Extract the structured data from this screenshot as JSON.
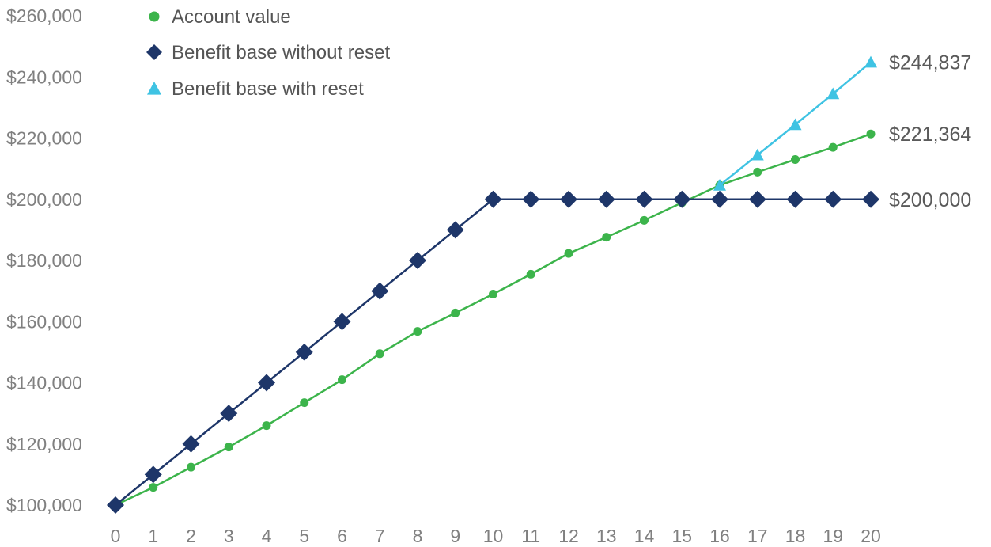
{
  "chart_data": {
    "type": "line",
    "title": "",
    "xlabel": "",
    "ylabel": "",
    "x": [
      0,
      1,
      2,
      3,
      4,
      5,
      6,
      7,
      8,
      9,
      10,
      11,
      12,
      13,
      14,
      15,
      16,
      17,
      18,
      19,
      20
    ],
    "ylim": [
      100000,
      260000
    ],
    "yticks": [
      100000,
      120000,
      140000,
      160000,
      180000,
      200000,
      220000,
      240000,
      260000
    ],
    "ytick_labels": [
      "$100,000",
      "$120,000",
      "$140,000",
      "$160,000",
      "$180,000",
      "$200,000",
      "$220,000",
      "$240,000",
      "$260,000"
    ],
    "xtick_labels": [
      "0",
      "1",
      "2",
      "3",
      "4",
      "5",
      "6",
      "7",
      "8",
      "9",
      "10",
      "11",
      "12",
      "13",
      "14",
      "15",
      "16",
      "17",
      "18",
      "19",
      "20"
    ],
    "grid": false,
    "legend_position": "top-left",
    "series": [
      {
        "name": "Account value",
        "marker": "circle",
        "color": "#3cb44b",
        "x": [
          0,
          1,
          2,
          3,
          4,
          5,
          6,
          7,
          8,
          9,
          10,
          11,
          12,
          13,
          14,
          15,
          16,
          17,
          18,
          19,
          20
        ],
        "values": [
          100000,
          105800,
          112400,
          119000,
          126000,
          133500,
          141000,
          149500,
          156800,
          162800,
          169000,
          175500,
          182300,
          187600,
          193100,
          198900,
          204600,
          208900,
          213000,
          217000,
          221364
        ]
      },
      {
        "name": "Benefit base without reset",
        "marker": "diamond",
        "color": "#1e3669",
        "x": [
          0,
          1,
          2,
          3,
          4,
          5,
          6,
          7,
          8,
          9,
          10,
          11,
          12,
          13,
          14,
          15,
          16,
          17,
          18,
          19,
          20
        ],
        "values": [
          100000,
          110000,
          120000,
          130000,
          140000,
          150000,
          160000,
          170000,
          180000,
          190000,
          200000,
          200000,
          200000,
          200000,
          200000,
          200000,
          200000,
          200000,
          200000,
          200000,
          200000
        ]
      },
      {
        "name": "Benefit base with reset",
        "marker": "triangle",
        "color": "#3fc3e3",
        "x": [
          16,
          17,
          18,
          19,
          20
        ],
        "values": [
          204600,
          214500,
          224400,
          234500,
          244837
        ]
      }
    ],
    "end_labels": [
      "$244,837",
      "$221,364",
      "$200,000"
    ]
  }
}
